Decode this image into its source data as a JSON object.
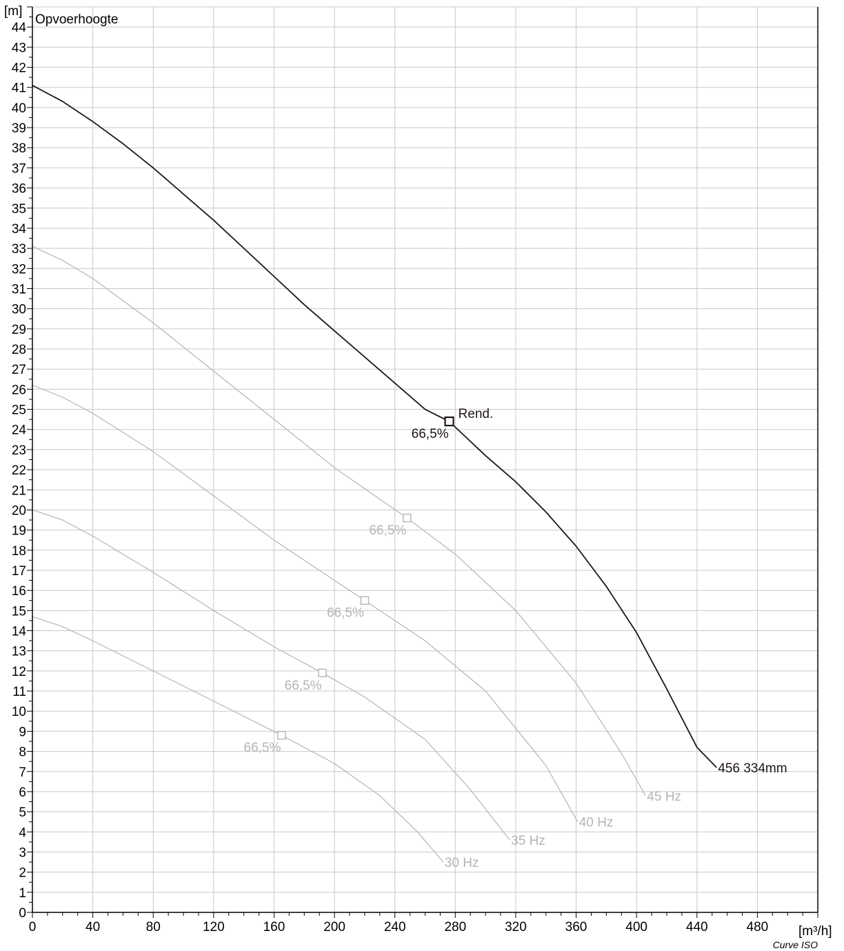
{
  "chart_data": {
    "type": "line",
    "title": "Opvoerhoogte",
    "ylabel": "[m]",
    "xlabel": "[m³/h]",
    "footer": "Curve ISO",
    "xlim": [
      0,
      520
    ],
    "ylim": [
      0,
      45
    ],
    "x_ticks": [
      0,
      40,
      80,
      120,
      160,
      200,
      240,
      280,
      320,
      360,
      400,
      440,
      480
    ],
    "y_ticks": [
      0,
      1,
      2,
      3,
      4,
      5,
      6,
      7,
      8,
      9,
      10,
      11,
      12,
      13,
      14,
      15,
      16,
      17,
      18,
      19,
      20,
      21,
      22,
      23,
      24,
      25,
      26,
      27,
      28,
      29,
      30,
      31,
      32,
      33,
      34,
      35,
      36,
      37,
      38,
      39,
      40,
      41,
      42,
      43,
      44
    ],
    "grid": true,
    "colors": {
      "main": "#1e1418",
      "secondary": "#b4b4b4",
      "grid": "#c8c8c8",
      "axis": "#000000"
    },
    "series": [
      {
        "name": "456 334mm",
        "style": "main",
        "x": [
          0,
          20,
          40,
          60,
          80,
          100,
          120,
          140,
          160,
          180,
          200,
          220,
          240,
          260,
          276,
          300,
          320,
          340,
          360,
          380,
          400,
          420,
          440,
          453
        ],
        "y": [
          41.1,
          40.3,
          39.3,
          38.2,
          37.0,
          35.7,
          34.4,
          33.0,
          31.6,
          30.2,
          28.9,
          27.6,
          26.3,
          25.0,
          24.4,
          22.7,
          21.4,
          19.9,
          18.2,
          16.2,
          13.9,
          11.1,
          8.2,
          7.2
        ],
        "marker": {
          "x": 276,
          "y": 24.4,
          "label": "66,5%",
          "extra_label": "Rend."
        }
      },
      {
        "name": "45 Hz",
        "style": "secondary",
        "x": [
          0,
          20,
          40,
          80,
          120,
          160,
          200,
          248,
          280,
          320,
          360,
          390,
          406
        ],
        "y": [
          33.1,
          32.4,
          31.5,
          29.3,
          26.9,
          24.5,
          22.1,
          19.6,
          17.8,
          15.0,
          11.4,
          7.9,
          5.8
        ],
        "marker": {
          "x": 248,
          "y": 19.6,
          "label": "66,5%"
        }
      },
      {
        "name": "40 Hz",
        "style": "secondary",
        "x": [
          0,
          20,
          40,
          80,
          120,
          160,
          200,
          220,
          260,
          300,
          340,
          361
        ],
        "y": [
          26.2,
          25.6,
          24.8,
          22.9,
          20.7,
          18.5,
          16.5,
          15.5,
          13.5,
          11.0,
          7.3,
          4.5
        ],
        "marker": {
          "x": 220,
          "y": 15.5,
          "label": "66,5%"
        }
      },
      {
        "name": "35 Hz",
        "style": "secondary",
        "x": [
          0,
          20,
          40,
          80,
          120,
          160,
          192,
          220,
          260,
          290,
          316
        ],
        "y": [
          20.0,
          19.5,
          18.7,
          16.9,
          15.0,
          13.2,
          11.9,
          10.7,
          8.6,
          6.1,
          3.6
        ],
        "marker": {
          "x": 192,
          "y": 11.9,
          "label": "66,5%"
        }
      },
      {
        "name": "30 Hz",
        "style": "secondary",
        "x": [
          0,
          20,
          40,
          80,
          120,
          165,
          200,
          230,
          255,
          272
        ],
        "y": [
          14.7,
          14.2,
          13.5,
          12.0,
          10.5,
          8.8,
          7.4,
          5.8,
          4.0,
          2.5
        ],
        "marker": {
          "x": 165,
          "y": 8.8,
          "label": "66,5%"
        }
      }
    ]
  }
}
